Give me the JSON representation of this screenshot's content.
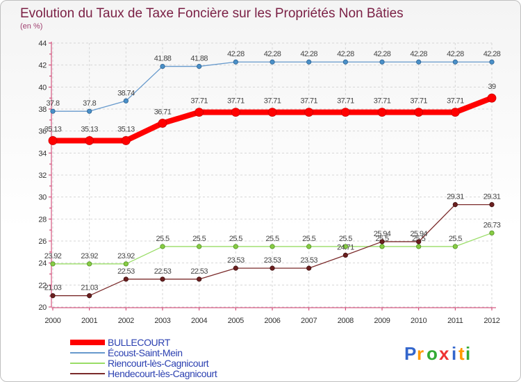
{
  "chart_data": {
    "type": "line",
    "title": "Evolution du Taux de Taxe Foncière sur les Propriétés Non Bâties",
    "subtitle": "(en %)",
    "x": [
      "2000",
      "2001",
      "2002",
      "2003",
      "2004",
      "2005",
      "2006",
      "2007",
      "2008",
      "2009",
      "2010",
      "2011",
      "2012"
    ],
    "ylim": [
      20,
      44
    ],
    "yticks": [
      "20",
      "22",
      "24",
      "26",
      "28",
      "30",
      "32",
      "34",
      "36",
      "38",
      "40",
      "42",
      "44"
    ],
    "grid": true,
    "legend_position": "bottom-left",
    "series": [
      {
        "name": "BULLECOURT",
        "color": "#ff0000",
        "values": [
          35.13,
          35.13,
          35.13,
          36.71,
          37.71,
          37.71,
          37.71,
          37.71,
          37.71,
          37.71,
          37.71,
          37.71,
          39
        ],
        "labels": [
          "35.13",
          "35.13",
          "35.13",
          "36.71",
          "37.71",
          "37.71",
          "37.71",
          "37.71",
          "37.71",
          "37.71",
          "37.71",
          "37.71",
          "39"
        ]
      },
      {
        "name": "Écoust-Saint-Mein",
        "color": "#6699cc",
        "values": [
          37.8,
          37.8,
          38.74,
          41.88,
          41.88,
          42.28,
          42.28,
          42.28,
          42.28,
          42.28,
          42.28,
          42.28,
          42.28
        ],
        "labels": [
          "37.8",
          "37.8",
          "38.74",
          "41.88",
          "41.88",
          "42.28",
          "42.28",
          "42.28",
          "42.28",
          "42.28",
          "42.28",
          "42.28",
          "42.28"
        ]
      },
      {
        "name": "Riencourt-lès-Cagnicourt",
        "color": "#99dd66",
        "values": [
          23.92,
          23.92,
          23.92,
          25.5,
          25.5,
          25.5,
          25.5,
          25.5,
          25.5,
          25.5,
          25.5,
          25.5,
          26.73
        ],
        "labels": [
          "23.92",
          "23.92",
          "23.92",
          "25.5",
          "25.5",
          "25.5",
          "25.5",
          "25.5",
          "25.5",
          "25.5",
          "25.5",
          "25.5",
          "26.73"
        ]
      },
      {
        "name": "Hendecourt-lès-Cagnicourt",
        "color": "#7a2a2a",
        "values": [
          21.03,
          21.03,
          22.53,
          22.53,
          22.53,
          23.53,
          23.53,
          23.53,
          24.71,
          25.94,
          25.94,
          29.31,
          29.31
        ],
        "labels": [
          "21.03",
          "21.03",
          "22.53",
          "22.53",
          "22.53",
          "23.53",
          "23.53",
          "23.53",
          "24.71",
          "25.94",
          "25.94",
          "29.31",
          "29.31"
        ]
      }
    ]
  },
  "logo": {
    "letters": [
      "P",
      "r",
      "o",
      "x",
      "i",
      "t",
      "i"
    ]
  }
}
